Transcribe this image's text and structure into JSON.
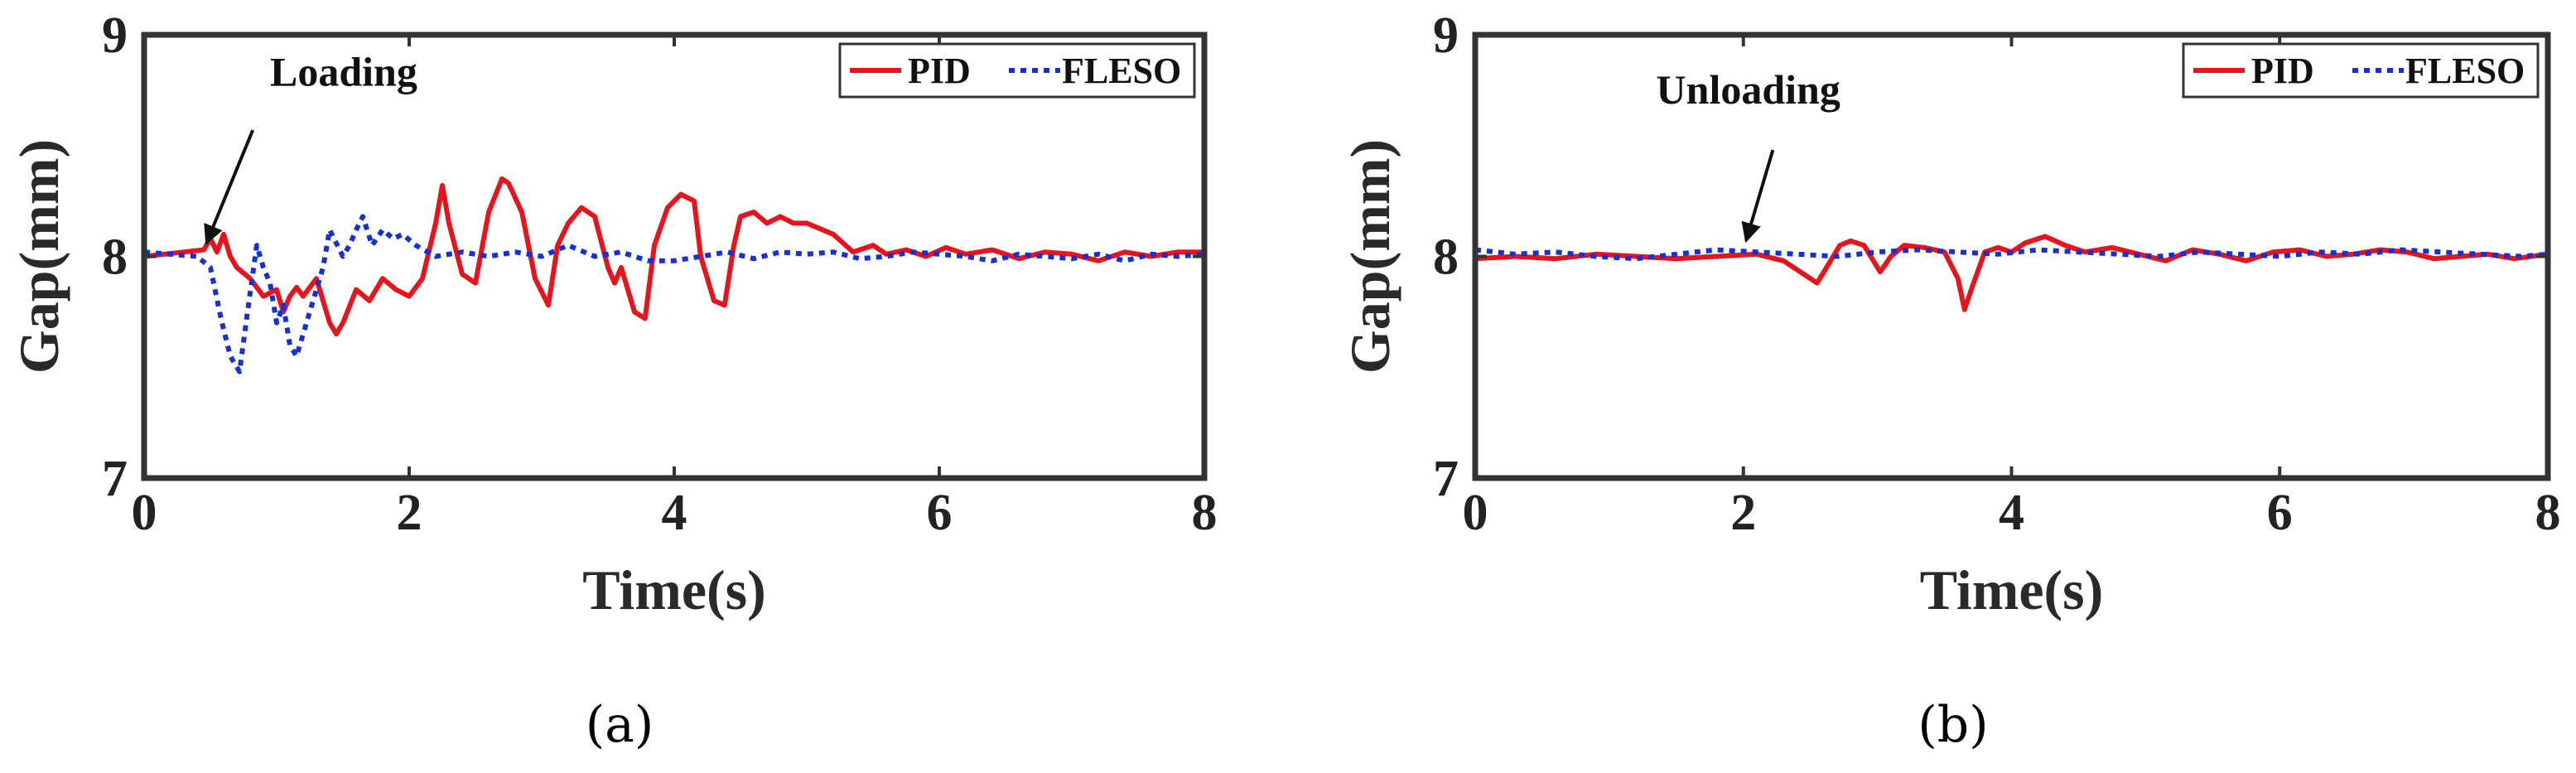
{
  "chart_data": [
    {
      "type": "line",
      "caption": "(a)",
      "xlabel": "Time(s)",
      "ylabel": "Gap(mm)",
      "xlim": [
        0,
        8
      ],
      "ylim": [
        7,
        9
      ],
      "xticks": [
        "0",
        "2",
        "4",
        "6",
        "8"
      ],
      "yticks": [
        "7",
        "8",
        "9"
      ],
      "legend": {
        "placement": "top-right",
        "entries": [
          "PID",
          "FLESO"
        ]
      },
      "annotation": {
        "text": "Loading",
        "text_at": [
          0.95,
          8.77
        ],
        "arrow_from": [
          0.82,
          8.57
        ],
        "arrow_to": [
          0.47,
          8.06
        ]
      },
      "series": [
        {
          "name": "PID",
          "color": "#e8141c",
          "style": "solid",
          "x": [
            0,
            0.3,
            0.45,
            0.5,
            0.55,
            0.6,
            0.65,
            0.7,
            0.8,
            0.9,
            1.0,
            1.05,
            1.1,
            1.15,
            1.2,
            1.3,
            1.4,
            1.45,
            1.5,
            1.6,
            1.7,
            1.8,
            1.9,
            2.0,
            2.1,
            2.2,
            2.25,
            2.3,
            2.4,
            2.5,
            2.6,
            2.7,
            2.75,
            2.85,
            2.95,
            3.05,
            3.12,
            3.2,
            3.3,
            3.4,
            3.5,
            3.55,
            3.6,
            3.7,
            3.78,
            3.85,
            3.95,
            4.05,
            4.15,
            4.2,
            4.3,
            4.38,
            4.45,
            4.5,
            4.6,
            4.7,
            4.8,
            4.9,
            5.0,
            5.2,
            5.35,
            5.5,
            5.6,
            5.75,
            5.9,
            6.05,
            6.2,
            6.4,
            6.6,
            6.8,
            7.0,
            7.2,
            7.4,
            7.6,
            7.8,
            8.0
          ],
          "values": [
            8.0,
            8.02,
            8.03,
            8.08,
            8.02,
            8.1,
            8.0,
            7.95,
            7.9,
            7.82,
            7.85,
            7.75,
            7.82,
            7.86,
            7.82,
            7.9,
            7.7,
            7.65,
            7.7,
            7.85,
            7.8,
            7.9,
            7.85,
            7.82,
            7.9,
            8.15,
            8.32,
            8.15,
            7.92,
            7.88,
            8.2,
            8.35,
            8.33,
            8.2,
            7.9,
            7.78,
            8.05,
            8.15,
            8.22,
            8.18,
            7.95,
            7.88,
            7.95,
            7.75,
            7.72,
            8.05,
            8.22,
            8.28,
            8.25,
            8.0,
            7.8,
            7.78,
            8.05,
            8.18,
            8.2,
            8.15,
            8.18,
            8.15,
            8.15,
            8.1,
            8.02,
            8.05,
            8.01,
            8.03,
            8.0,
            8.04,
            8.01,
            8.03,
            7.99,
            8.02,
            8.01,
            7.98,
            8.02,
            8.0,
            8.02,
            8.02
          ]
        },
        {
          "name": "FLESO",
          "color": "#1530d6",
          "style": "dotted",
          "x": [
            0,
            0.4,
            0.5,
            0.58,
            0.65,
            0.72,
            0.78,
            0.85,
            0.9,
            0.95,
            1.0,
            1.05,
            1.1,
            1.15,
            1.2,
            1.3,
            1.35,
            1.4,
            1.5,
            1.55,
            1.6,
            1.65,
            1.72,
            1.8,
            1.88,
            1.95,
            2.05,
            2.2,
            2.4,
            2.6,
            2.8,
            3.0,
            3.2,
            3.4,
            3.6,
            3.8,
            4.0,
            4.2,
            4.4,
            4.6,
            4.8,
            5.0,
            5.2,
            5.4,
            5.6,
            5.8,
            6.0,
            6.2,
            6.4,
            6.6,
            6.8,
            7.0,
            7.2,
            7.4,
            7.6,
            7.8,
            8.0
          ],
          "values": [
            8.02,
            8.0,
            7.95,
            7.72,
            7.55,
            7.48,
            7.75,
            8.05,
            7.95,
            7.88,
            7.7,
            7.78,
            7.6,
            7.55,
            7.65,
            7.85,
            7.95,
            8.12,
            8.0,
            8.05,
            8.12,
            8.18,
            8.05,
            8.12,
            8.08,
            8.1,
            8.05,
            8.0,
            8.02,
            8.0,
            8.02,
            8.0,
            8.05,
            8.0,
            8.02,
            7.98,
            7.98,
            8.0,
            8.02,
            7.99,
            8.02,
            8.01,
            8.02,
            7.99,
            8.0,
            8.02,
            8.01,
            8.0,
            7.98,
            8.01,
            8.0,
            7.99,
            8.01,
            7.98,
            8.01,
            8.0,
            8.01
          ]
        }
      ]
    },
    {
      "type": "line",
      "caption": "(b)",
      "xlabel": "Time(s)",
      "ylabel": "Gap(mm)",
      "xlim": [
        0,
        8
      ],
      "ylim": [
        7,
        9
      ],
      "xticks": [
        "0",
        "2",
        "4",
        "6",
        "8"
      ],
      "yticks": [
        "7",
        "8",
        "9"
      ],
      "legend": {
        "placement": "top-right",
        "entries": [
          "PID",
          "FLESO"
        ]
      },
      "annotation": {
        "text": "Unloading",
        "text_at": [
          1.35,
          8.69
        ],
        "arrow_from": [
          2.22,
          8.48
        ],
        "arrow_to": [
          2.02,
          8.07
        ]
      },
      "series": [
        {
          "name": "PID",
          "color": "#e8141c",
          "style": "solid",
          "x": [
            0,
            0.3,
            0.6,
            0.9,
            1.2,
            1.5,
            1.8,
            2.1,
            2.3,
            2.45,
            2.55,
            2.62,
            2.72,
            2.8,
            2.9,
            2.98,
            3.02,
            3.1,
            3.2,
            3.35,
            3.5,
            3.6,
            3.65,
            3.7,
            3.8,
            3.9,
            4.0,
            4.1,
            4.25,
            4.4,
            4.55,
            4.75,
            4.95,
            5.15,
            5.35,
            5.55,
            5.75,
            5.95,
            6.15,
            6.35,
            6.55,
            6.75,
            6.95,
            7.15,
            7.35,
            7.55,
            7.75,
            8.0
          ],
          "values": [
            7.99,
            8.0,
            7.99,
            8.01,
            8.0,
            7.99,
            8.0,
            8.01,
            7.98,
            7.92,
            7.88,
            7.95,
            8.05,
            8.07,
            8.05,
            7.97,
            7.93,
            8.0,
            8.05,
            8.04,
            8.02,
            7.9,
            7.76,
            7.85,
            8.02,
            8.04,
            8.02,
            8.06,
            8.09,
            8.05,
            8.02,
            8.04,
            8.01,
            7.98,
            8.03,
            8.01,
            7.98,
            8.02,
            8.03,
            8.0,
            8.01,
            8.03,
            8.02,
            7.99,
            8.0,
            8.01,
            7.99,
            8.01
          ]
        },
        {
          "name": "FLESO",
          "color": "#1530d6",
          "style": "dotted",
          "x": [
            0,
            0.3,
            0.6,
            0.9,
            1.2,
            1.5,
            1.8,
            2.1,
            2.4,
            2.7,
            3.0,
            3.3,
            3.6,
            3.9,
            4.2,
            4.5,
            4.8,
            5.1,
            5.4,
            5.7,
            6.0,
            6.3,
            6.6,
            6.9,
            7.2,
            7.5,
            7.8,
            8.0
          ],
          "values": [
            8.03,
            8.01,
            8.02,
            8.0,
            7.99,
            8.01,
            8.03,
            8.02,
            8.01,
            8.0,
            8.02,
            8.03,
            8.02,
            8.01,
            8.03,
            8.02,
            8.01,
            8.0,
            8.02,
            8.01,
            8.0,
            8.02,
            8.01,
            8.03,
            8.02,
            8.01,
            8.0,
            8.01
          ]
        }
      ]
    }
  ]
}
